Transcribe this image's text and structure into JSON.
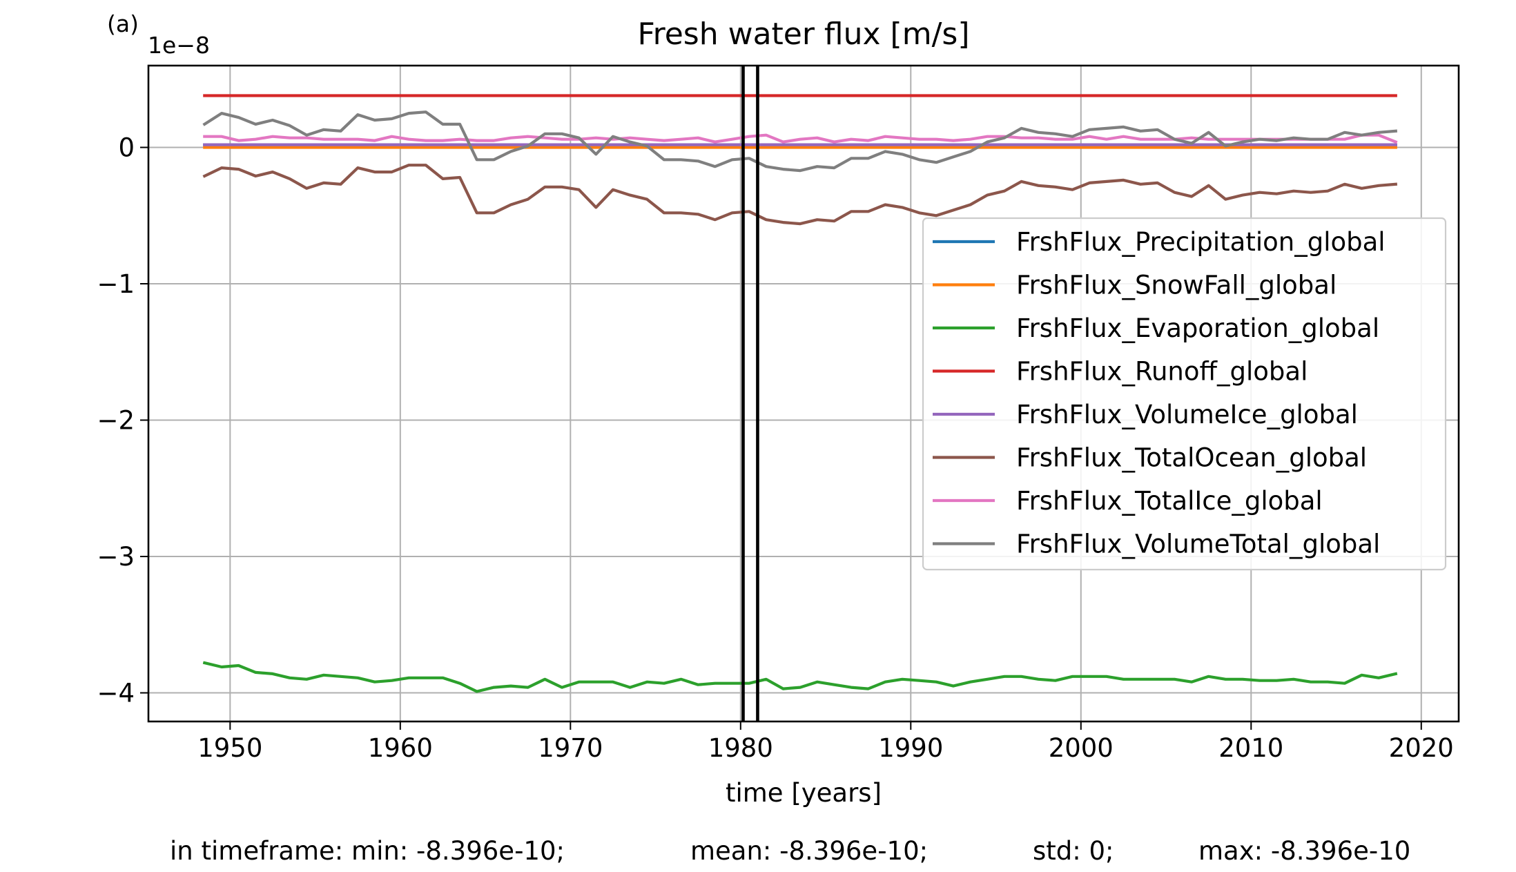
{
  "chart_data": {
    "type": "line",
    "panel_label": "(a)",
    "title": "Fresh water flux [m/s]",
    "xlabel": "time [years]",
    "ylabel": "",
    "y_scale_label": "1e−8",
    "xlim": [
      1945.2,
      2022.2
    ],
    "ylim": [
      -4.21,
      0.6
    ],
    "x_ticks": [
      1950,
      1960,
      1970,
      1980,
      1990,
      2000,
      2010,
      2020
    ],
    "x_tick_labels": [
      "1950",
      "1960",
      "1970",
      "1980",
      "1990",
      "2000",
      "2010",
      "2020"
    ],
    "y_ticks": [
      -4,
      -3,
      -2,
      -1,
      0
    ],
    "y_tick_labels": [
      "−4",
      "−3",
      "−2",
      "−1",
      "0"
    ],
    "grid": true,
    "legend_position": "center-right",
    "vlines": [
      1980.15,
      1981.0
    ],
    "vline_color": "#000000",
    "x": [
      1948.5,
      1949.5,
      1950.5,
      1951.5,
      1952.5,
      1953.5,
      1954.5,
      1955.5,
      1956.5,
      1957.5,
      1958.5,
      1959.5,
      1960.5,
      1961.5,
      1962.5,
      1963.5,
      1964.5,
      1965.5,
      1966.5,
      1967.5,
      1968.5,
      1969.5,
      1970.5,
      1971.5,
      1972.5,
      1973.5,
      1974.5,
      1975.5,
      1976.5,
      1977.5,
      1978.5,
      1979.5,
      1980.5,
      1981.5,
      1982.5,
      1983.5,
      1984.5,
      1985.5,
      1986.5,
      1987.5,
      1988.5,
      1989.5,
      1990.5,
      1991.5,
      1992.5,
      1993.5,
      1994.5,
      1995.5,
      1996.5,
      1997.5,
      1998.5,
      1999.5,
      2000.5,
      2001.5,
      2002.5,
      2003.5,
      2004.5,
      2005.5,
      2006.5,
      2007.5,
      2008.5,
      2009.5,
      2010.5,
      2011.5,
      2012.5,
      2013.5,
      2014.5,
      2015.5,
      2016.5,
      2017.5,
      2018.5
    ],
    "series": [
      {
        "name": "FrshFlux_Precipitation_global",
        "color": "#1f77b4",
        "values": [
          0.02,
          0.02,
          0.02,
          0.02,
          0.02,
          0.02,
          0.02,
          0.02,
          0.02,
          0.02,
          0.02,
          0.02,
          0.02,
          0.02,
          0.02,
          0.02,
          0.02,
          0.02,
          0.02,
          0.02,
          0.02,
          0.02,
          0.02,
          0.02,
          0.02,
          0.02,
          0.02,
          0.02,
          0.02,
          0.02,
          0.02,
          0.02,
          0.02,
          0.02,
          0.02,
          0.02,
          0.02,
          0.02,
          0.02,
          0.02,
          0.02,
          0.02,
          0.02,
          0.02,
          0.02,
          0.02,
          0.02,
          0.02,
          0.02,
          0.02,
          0.02,
          0.02,
          0.02,
          0.02,
          0.02,
          0.02,
          0.02,
          0.02,
          0.02,
          0.02,
          0.02,
          0.02,
          0.02,
          0.02,
          0.02,
          0.02,
          0.02,
          0.02,
          0.02,
          0.02,
          0.02
        ]
      },
      {
        "name": "FrshFlux_SnowFall_global",
        "color": "#ff7f0e",
        "values": [
          0.0,
          0.0,
          0.0,
          0.0,
          0.0,
          0.0,
          0.0,
          0.0,
          0.0,
          0.0,
          0.0,
          0.0,
          0.0,
          0.0,
          0.0,
          0.0,
          0.0,
          0.0,
          0.0,
          0.0,
          0.0,
          0.0,
          0.0,
          0.0,
          0.0,
          0.0,
          0.0,
          0.0,
          0.0,
          0.0,
          0.0,
          0.0,
          0.0,
          0.0,
          0.0,
          0.0,
          0.0,
          0.0,
          0.0,
          0.0,
          0.0,
          0.0,
          0.0,
          0.0,
          0.0,
          0.0,
          0.0,
          0.0,
          0.0,
          0.0,
          0.0,
          0.0,
          0.0,
          0.0,
          0.0,
          0.0,
          0.0,
          0.0,
          0.0,
          0.0,
          0.0,
          0.0,
          0.0,
          0.0,
          0.0,
          0.0,
          0.0,
          0.0,
          0.0,
          0.0,
          0.0
        ]
      },
      {
        "name": "FrshFlux_Evaporation_global",
        "color": "#2ca02c",
        "values": [
          -3.78,
          -3.81,
          -3.8,
          -3.85,
          -3.86,
          -3.89,
          -3.9,
          -3.87,
          -3.88,
          -3.89,
          -3.92,
          -3.91,
          -3.89,
          -3.89,
          -3.89,
          -3.93,
          -3.99,
          -3.96,
          -3.95,
          -3.96,
          -3.9,
          -3.96,
          -3.92,
          -3.92,
          -3.92,
          -3.96,
          -3.92,
          -3.93,
          -3.9,
          -3.94,
          -3.93,
          -3.93,
          -3.93,
          -3.9,
          -3.97,
          -3.96,
          -3.92,
          -3.94,
          -3.96,
          -3.97,
          -3.92,
          -3.9,
          -3.91,
          -3.92,
          -3.95,
          -3.92,
          -3.9,
          -3.88,
          -3.88,
          -3.9,
          -3.91,
          -3.88,
          -3.88,
          -3.88,
          -3.9,
          -3.9,
          -3.9,
          -3.9,
          -3.92,
          -3.88,
          -3.9,
          -3.9,
          -3.91,
          -3.91,
          -3.9,
          -3.92,
          -3.92,
          -3.93,
          -3.87,
          -3.89,
          -3.86
        ]
      },
      {
        "name": "FrshFlux_Runoff_global",
        "color": "#d62728",
        "values": [
          0.38,
          0.38,
          0.38,
          0.38,
          0.38,
          0.38,
          0.38,
          0.38,
          0.38,
          0.38,
          0.38,
          0.38,
          0.38,
          0.38,
          0.38,
          0.38,
          0.38,
          0.38,
          0.38,
          0.38,
          0.38,
          0.38,
          0.38,
          0.38,
          0.38,
          0.38,
          0.38,
          0.38,
          0.38,
          0.38,
          0.38,
          0.38,
          0.38,
          0.38,
          0.38,
          0.38,
          0.38,
          0.38,
          0.38,
          0.38,
          0.38,
          0.38,
          0.38,
          0.38,
          0.38,
          0.38,
          0.38,
          0.38,
          0.38,
          0.38,
          0.38,
          0.38,
          0.38,
          0.38,
          0.38,
          0.38,
          0.38,
          0.38,
          0.38,
          0.38,
          0.38,
          0.38,
          0.38,
          0.38,
          0.38,
          0.38,
          0.38,
          0.38,
          0.38,
          0.38,
          0.38
        ]
      },
      {
        "name": "FrshFlux_VolumeIce_global",
        "color": "#9467bd",
        "values": [
          0.02,
          0.02,
          0.02,
          0.02,
          0.02,
          0.02,
          0.02,
          0.02,
          0.02,
          0.02,
          0.02,
          0.02,
          0.02,
          0.02,
          0.02,
          0.02,
          0.02,
          0.02,
          0.02,
          0.02,
          0.02,
          0.02,
          0.02,
          0.02,
          0.02,
          0.02,
          0.02,
          0.02,
          0.02,
          0.02,
          0.02,
          0.02,
          0.02,
          0.02,
          0.02,
          0.02,
          0.02,
          0.02,
          0.02,
          0.02,
          0.02,
          0.02,
          0.02,
          0.02,
          0.02,
          0.02,
          0.02,
          0.02,
          0.02,
          0.02,
          0.02,
          0.02,
          0.02,
          0.02,
          0.02,
          0.02,
          0.02,
          0.02,
          0.02,
          0.02,
          0.02,
          0.02,
          0.02,
          0.02,
          0.02,
          0.02,
          0.02,
          0.02,
          0.02,
          0.02,
          0.02
        ]
      },
      {
        "name": "FrshFlux_TotalOcean_global",
        "color": "#8c564b",
        "values": [
          -0.21,
          -0.15,
          -0.16,
          -0.21,
          -0.18,
          -0.23,
          -0.3,
          -0.26,
          -0.27,
          -0.15,
          -0.18,
          -0.18,
          -0.13,
          -0.13,
          -0.23,
          -0.22,
          -0.48,
          -0.48,
          -0.42,
          -0.38,
          -0.29,
          -0.29,
          -0.31,
          -0.44,
          -0.31,
          -0.35,
          -0.38,
          -0.48,
          -0.48,
          -0.49,
          -0.53,
          -0.48,
          -0.47,
          -0.53,
          -0.55,
          -0.56,
          -0.53,
          -0.54,
          -0.47,
          -0.47,
          -0.42,
          -0.44,
          -0.48,
          -0.5,
          -0.46,
          -0.42,
          -0.35,
          -0.32,
          -0.25,
          -0.28,
          -0.29,
          -0.31,
          -0.26,
          -0.25,
          -0.24,
          -0.27,
          -0.26,
          -0.33,
          -0.36,
          -0.28,
          -0.38,
          -0.35,
          -0.33,
          -0.34,
          -0.32,
          -0.33,
          -0.32,
          -0.27,
          -0.3,
          -0.28,
          -0.27
        ]
      },
      {
        "name": "FrshFlux_TotalIce_global",
        "color": "#e377c2",
        "values": [
          0.08,
          0.08,
          0.05,
          0.06,
          0.08,
          0.07,
          0.07,
          0.06,
          0.06,
          0.06,
          0.05,
          0.08,
          0.06,
          0.05,
          0.05,
          0.06,
          0.05,
          0.05,
          0.07,
          0.08,
          0.07,
          0.06,
          0.06,
          0.07,
          0.06,
          0.07,
          0.06,
          0.05,
          0.06,
          0.07,
          0.04,
          0.06,
          0.08,
          0.09,
          0.04,
          0.06,
          0.07,
          0.04,
          0.06,
          0.05,
          0.08,
          0.07,
          0.06,
          0.06,
          0.05,
          0.06,
          0.08,
          0.08,
          0.07,
          0.07,
          0.06,
          0.06,
          0.08,
          0.06,
          0.08,
          0.06,
          0.06,
          0.06,
          0.07,
          0.06,
          0.06,
          0.06,
          0.06,
          0.06,
          0.06,
          0.06,
          0.06,
          0.06,
          0.09,
          0.09,
          0.04
        ]
      },
      {
        "name": "FrshFlux_VolumeTotal_global",
        "color": "#7f7f7f",
        "values": [
          0.17,
          0.25,
          0.22,
          0.17,
          0.2,
          0.16,
          0.09,
          0.13,
          0.12,
          0.24,
          0.2,
          0.21,
          0.25,
          0.26,
          0.17,
          0.17,
          -0.09,
          -0.09,
          -0.03,
          0.01,
          0.1,
          0.1,
          0.07,
          -0.05,
          0.08,
          0.04,
          0.01,
          -0.09,
          -0.09,
          -0.1,
          -0.14,
          -0.09,
          -0.08,
          -0.14,
          -0.16,
          -0.17,
          -0.14,
          -0.15,
          -0.08,
          -0.08,
          -0.03,
          -0.05,
          -0.09,
          -0.11,
          -0.07,
          -0.03,
          0.04,
          0.07,
          0.14,
          0.11,
          0.1,
          0.08,
          0.13,
          0.14,
          0.15,
          0.12,
          0.13,
          0.06,
          0.03,
          0.11,
          0.01,
          0.04,
          0.06,
          0.05,
          0.07,
          0.06,
          0.06,
          0.11,
          0.09,
          0.11,
          0.12
        ]
      }
    ]
  },
  "footer": {
    "min": "in timeframe: min: -8.396e-10;",
    "mean": "mean: -8.396e-10;",
    "std": "std: 0;",
    "max": "max: -8.396e-10"
  }
}
